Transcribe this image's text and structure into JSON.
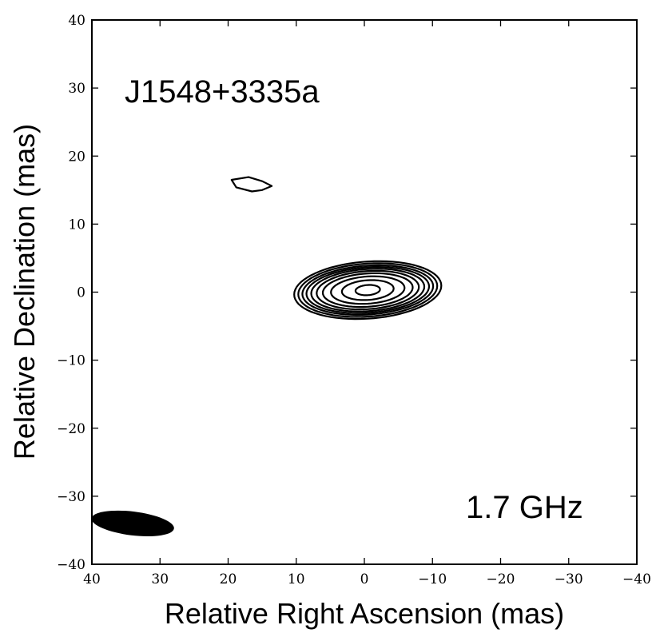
{
  "chart_data": {
    "type": "contour",
    "xlabel": "Relative Right Ascension (mas)",
    "ylabel": "Relative Declination (mas)",
    "xlim": [
      40,
      -40
    ],
    "ylim": [
      -40,
      40
    ],
    "xticks": [
      40,
      30,
      20,
      10,
      0,
      -10,
      -20,
      -30,
      -40
    ],
    "yticks": [
      40,
      30,
      20,
      10,
      0,
      -10,
      -20,
      -30,
      -40
    ],
    "xtick_labels": [
      "40",
      "30",
      "20",
      "10",
      "0",
      "−10",
      "−20",
      "−30",
      "−40"
    ],
    "ytick_labels": [
      "40",
      "30",
      "20",
      "10",
      "0",
      "−10",
      "−20",
      "−30",
      "−40"
    ],
    "source_label": "J1548+3335a",
    "frequency_label": "1.7 GHz",
    "main_component": {
      "center": [
        -0.5,
        0.3
      ],
      "contours": [
        {
          "rx": 10.8,
          "ry": 4.2
        },
        {
          "rx": 10.2,
          "ry": 3.9
        },
        {
          "rx": 9.6,
          "ry": 3.6
        },
        {
          "rx": 9.0,
          "ry": 3.35
        },
        {
          "rx": 8.3,
          "ry": 3.1
        },
        {
          "rx": 7.5,
          "ry": 2.8
        },
        {
          "rx": 6.6,
          "ry": 2.45
        },
        {
          "rx": 5.4,
          "ry": 2.0
        },
        {
          "rx": 3.8,
          "ry": 1.45
        },
        {
          "rx": 1.8,
          "ry": 0.75
        }
      ]
    },
    "secondary_component": {
      "outline": [
        [
          19.5,
          16.5
        ],
        [
          17.0,
          16.9
        ],
        [
          15.0,
          16.3
        ],
        [
          13.6,
          15.6
        ],
        [
          15.0,
          15.0
        ],
        [
          16.5,
          14.8
        ],
        [
          18.8,
          15.4
        ]
      ]
    },
    "beam": {
      "center": [
        34.0,
        -34.0
      ],
      "major": 12.2,
      "minor": 3.5,
      "pa_deg": 97
    }
  }
}
